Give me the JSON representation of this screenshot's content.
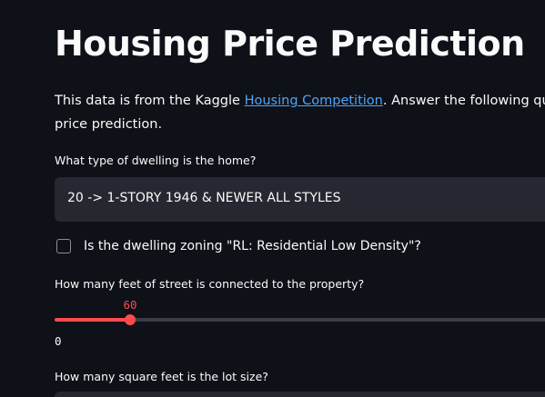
{
  "header": {
    "title": "Housing Price Prediction"
  },
  "intro": {
    "line1_before": "This data is from the Kaggle ",
    "link_text": "Housing Competition",
    "line1_after": ". Answer the following questions",
    "line2": "price prediction."
  },
  "dwelling_type": {
    "label": "What type of dwelling is the home?",
    "selected": "20 -> 1-STORY 1946 & NEWER ALL STYLES"
  },
  "zoning": {
    "label": "Is the dwelling zoning \"RL: Residential Low Density\"?",
    "checked": false
  },
  "street_feet": {
    "label": "How many feet of street is connected to the property?",
    "value": "60",
    "min_label": "0",
    "fill_fraction": 0.149
  },
  "lot_size": {
    "label": "How many square feet is the lot size?"
  },
  "colors": {
    "background": "#0e1117",
    "accent": "#ff4b4b",
    "link": "#4fa3f7",
    "input_bg": "#262730"
  }
}
